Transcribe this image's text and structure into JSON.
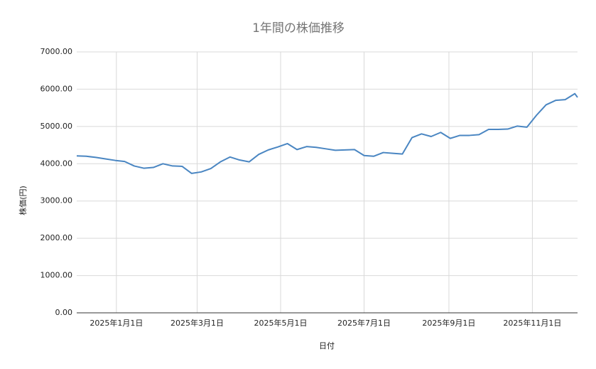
{
  "chart_data": {
    "type": "line",
    "title": "1年間の株価推移",
    "x_label": "日付",
    "y_label": "株価(円)",
    "x": [
      "2024-12-03",
      "2024-12-10",
      "2024-12-17",
      "2024-12-24",
      "2024-12-31",
      "2025-01-07",
      "2025-01-14",
      "2025-01-21",
      "2025-01-28",
      "2025-02-04",
      "2025-02-11",
      "2025-02-18",
      "2025-02-25",
      "2025-03-04",
      "2025-03-11",
      "2025-03-18",
      "2025-03-25",
      "2025-04-01",
      "2025-04-08",
      "2025-04-15",
      "2025-04-22",
      "2025-04-29",
      "2025-05-06",
      "2025-05-13",
      "2025-05-20",
      "2025-05-27",
      "2025-06-03",
      "2025-06-10",
      "2025-06-17",
      "2025-06-24",
      "2025-07-01",
      "2025-07-08",
      "2025-07-15",
      "2025-07-22",
      "2025-07-29",
      "2025-08-05",
      "2025-08-12",
      "2025-08-19",
      "2025-08-26",
      "2025-09-02",
      "2025-09-09",
      "2025-09-16",
      "2025-09-23",
      "2025-09-30",
      "2025-10-07",
      "2025-10-14",
      "2025-10-21",
      "2025-10-28",
      "2025-11-04",
      "2025-11-11",
      "2025-11-18",
      "2025-11-25",
      "2025-12-02",
      "2025-12-04"
    ],
    "series": [
      {
        "name": "株価(円)",
        "color": "#4a86c2",
        "values": [
          4210,
          4200,
          4170,
          4130,
          4090,
          4060,
          3940,
          3880,
          3900,
          4000,
          3940,
          3930,
          3740,
          3780,
          3870,
          4050,
          4180,
          4100,
          4050,
          4250,
          4370,
          4450,
          4540,
          4380,
          4460,
          4440,
          4400,
          4360,
          4370,
          4380,
          4220,
          4200,
          4300,
          4280,
          4260,
          4700,
          4800,
          4730,
          4840,
          4680,
          4760,
          4760,
          4780,
          4920,
          4920,
          4930,
          5010,
          4980,
          5300,
          5580,
          5700,
          5720,
          5880,
          5780
        ]
      }
    ],
    "xlim": [
      "2024-12-03",
      "2025-12-04"
    ],
    "xticks": [
      {
        "value": "2025-01-01",
        "label": "2025年1月1日"
      },
      {
        "value": "2025-03-01",
        "label": "2025年3月1日"
      },
      {
        "value": "2025-05-01",
        "label": "2025年5月1日"
      },
      {
        "value": "2025-07-01",
        "label": "2025年7月1日"
      },
      {
        "value": "2025-09-01",
        "label": "2025年9月1日"
      },
      {
        "value": "2025-11-01",
        "label": "2025年11月1日"
      }
    ],
    "ylim": [
      0,
      7000
    ],
    "yticks": [
      {
        "value": 0,
        "label": "0.00"
      },
      {
        "value": 1000,
        "label": "1000.00"
      },
      {
        "value": 2000,
        "label": "2000.00"
      },
      {
        "value": 3000,
        "label": "3000.00"
      },
      {
        "value": 4000,
        "label": "4000.00"
      },
      {
        "value": 5000,
        "label": "5000.00"
      },
      {
        "value": 6000,
        "label": "6000.00"
      },
      {
        "value": 7000,
        "label": "7000.00"
      }
    ],
    "grid": true
  }
}
